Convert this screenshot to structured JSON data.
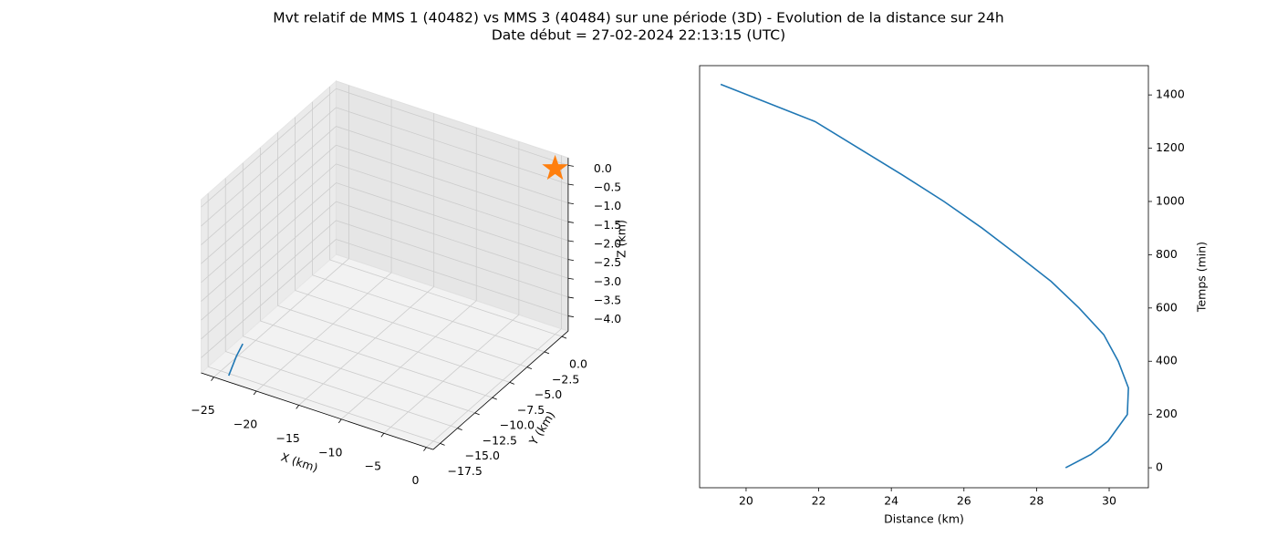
{
  "figure_title": [
    "Mvt relatif de MMS 1 (40482) vs MMS 3 (40484) sur une période (3D) - Evolution de la distance sur 24h",
    "Date début = 27-02-2024 22:13:15 (UTC)"
  ],
  "chart_data": [
    {
      "type": "line3d",
      "xlabel": "X (km)",
      "ylabel": "Y (km)",
      "zlabel": "Z (km)",
      "series": [
        {
          "color": "#1f77b4",
          "x": [
            -23.5,
            -24.0,
            -24.3
          ],
          "y": [
            -18.2,
            -16.5,
            -15.2
          ],
          "z": [
            -4.3,
            -4.1,
            -4.0
          ]
        },
        {
          "color": "#ff7f0e",
          "marker": "star",
          "x": [
            0
          ],
          "y": [
            0
          ],
          "z": [
            0
          ]
        }
      ],
      "xlim": [
        -26.5,
        0.8
      ],
      "ylim": [
        -18.5,
        0.9
      ],
      "zlim": [
        -4.4,
        0.2
      ],
      "xticks": [
        {
          "value": -25,
          "label": "−25"
        },
        {
          "value": -20,
          "label": "−20"
        },
        {
          "value": -15,
          "label": "−15"
        },
        {
          "value": -10,
          "label": "−10"
        },
        {
          "value": -5,
          "label": "−5"
        },
        0
      ],
      "yticks": [
        {
          "value": 0,
          "label": "0.0"
        },
        {
          "value": -2.5,
          "label": "−2.5"
        },
        {
          "value": -5,
          "label": "−5.0"
        },
        {
          "value": -7.5,
          "label": "−7.5"
        },
        {
          "value": -10,
          "label": "−10.0"
        },
        {
          "value": -12.5,
          "label": "−12.5"
        },
        {
          "value": -15,
          "label": "−15.0"
        },
        {
          "value": -17.5,
          "label": "−17.5"
        }
      ],
      "zticks": [
        {
          "value": 0,
          "label": "0.0"
        },
        {
          "value": -0.5,
          "label": "−0.5"
        },
        {
          "value": -1,
          "label": "−1.0"
        },
        {
          "value": -1.5,
          "label": "−1.5"
        },
        {
          "value": -2,
          "label": "−2.0"
        },
        {
          "value": -2.5,
          "label": "−2.5"
        },
        {
          "value": -3,
          "label": "−3.0"
        },
        {
          "value": -3.5,
          "label": "−3.5"
        },
        {
          "value": -4,
          "label": "−4.0"
        }
      ],
      "grid": true
    },
    {
      "type": "line",
      "xlabel": "Distance (km)",
      "ylabel": "Temps (min)",
      "color": "#1f77b4",
      "x": [
        28.8,
        29.5,
        29.97,
        30.5,
        30.53,
        30.25,
        29.85,
        29.17,
        28.4,
        27.46,
        26.5,
        25.45,
        24.3,
        23.1,
        21.9,
        19.3
      ],
      "y": [
        0,
        50,
        100,
        200,
        300,
        400,
        500,
        600,
        700,
        800,
        900,
        1000,
        1100,
        1200,
        1300,
        1440
      ],
      "xlim": [
        18.72,
        31.08
      ],
      "ylim": [
        -75,
        1510
      ],
      "xticks": [
        20,
        22,
        24,
        26,
        28,
        30
      ],
      "yticks": [
        0,
        200,
        400,
        600,
        800,
        1000,
        1200,
        1400
      ],
      "y_axis_side": "right"
    }
  ]
}
